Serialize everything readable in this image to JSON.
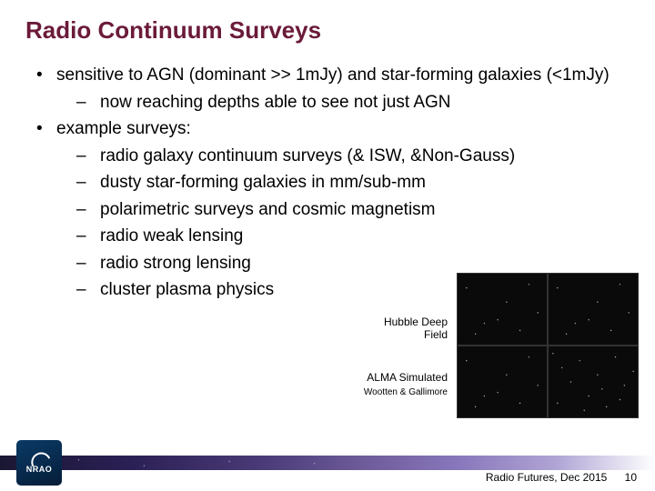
{
  "title": "Radio Continuum Surveys",
  "bullets": {
    "b1": "sensitive to AGN (dominant >> 1mJy) and star-forming galaxies (<1mJy)",
    "b1a": "now reaching depths able to see not just AGN",
    "b2": "example surveys:",
    "b2a": "radio galaxy continuum surveys (& ISW, &Non-Gauss)",
    "b2b": "dusty star-forming galaxies in mm/sub-mm",
    "b2c": "polarimetric surveys and cosmic magnetism",
    "b2d": "radio weak lensing",
    "b2e": "radio strong lensing",
    "b2f": "cluster plasma physics"
  },
  "captions": {
    "hdf1": "Hubble Deep",
    "hdf2": "Field",
    "alma": "ALMA Simulated",
    "credit": "Wootten & Gallimore"
  },
  "logo": {
    "text": "NRAO"
  },
  "footer": {
    "event": "Radio Futures, Dec 2015",
    "page": "10"
  },
  "colors": {
    "title": "#6b1a3a",
    "text": "#000000",
    "background": "#ffffff",
    "logo_bg": "#0a3a66"
  }
}
